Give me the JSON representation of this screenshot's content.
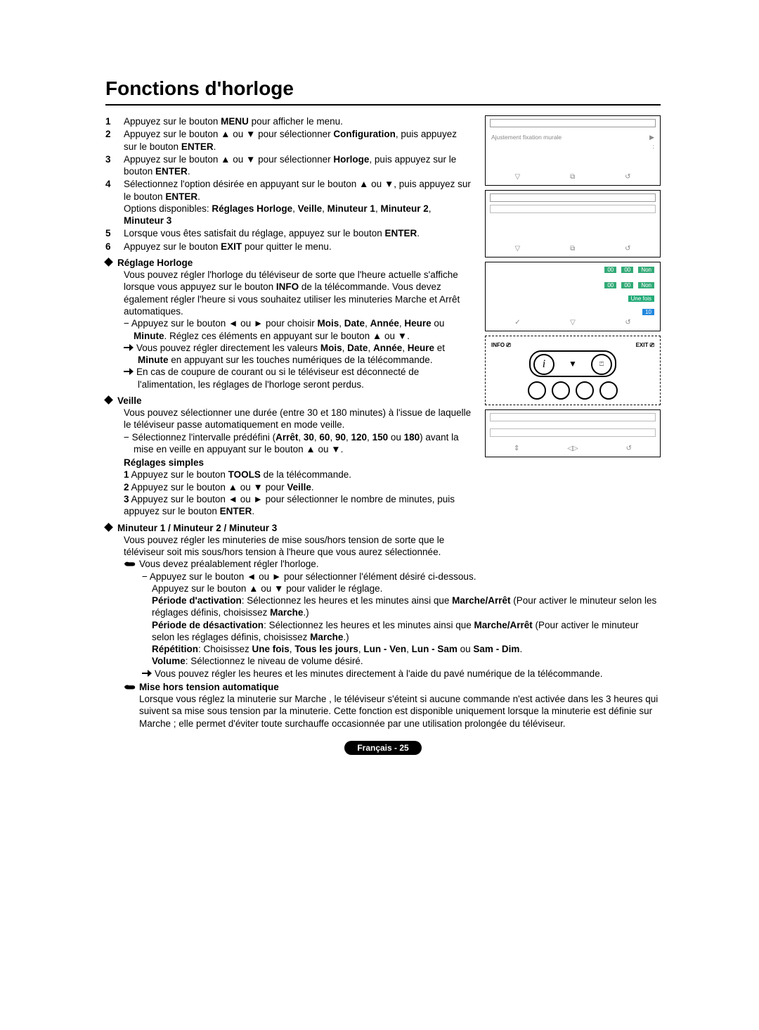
{
  "title": "Fonctions d'horloge",
  "steps": [
    "Appuyez sur le bouton <b>MENU</b> pour afficher le menu.",
    "Appuyez sur le bouton ▲ ou ▼ pour sélectionner <b>Configuration</b>, puis appuyez sur le bouton <b>ENTER</b>.",
    "Appuyez sur le bouton ▲ ou ▼ pour sélectionner <b>Horloge</b>, puis appuyez sur le bouton <b>ENTER</b>.",
    "Sélectionnez l'option désirée en appuyant sur le bouton ▲ ou ▼, puis appuyez sur le bouton <b>ENTER</b>.<br>Options disponibles: <b>Réglages Horloge</b>, <b>Veille</b>, <b>Minuteur 1</b>, <b>Minuteur 2</b>, <b>Minuteur 3</b>",
    "Lorsque vous êtes satisfait du réglage, appuyez sur le bouton <b>ENTER</b>.",
    "Appuyez sur le bouton <b>EXIT</b> pour quitter le menu."
  ],
  "sec_reglage_title": "Réglage Horloge",
  "sec_reglage_body": "Vous pouvez régler l'horloge du téléviseur de sorte que l'heure actuelle s'affiche lorsque vous appuyez sur le bouton <b>INFO</b> de la télécommande. Vous devez également régler l'heure si vous souhaitez utiliser les minuteries Marche et Arrêt automatiques.",
  "sec_reglage_dash": "Appuyez sur le bouton ◄ ou ► pour choisir <b>Mois</b>, <b>Date</b>, <b>Année</b>, <b>Heure</b> ou <b>Minute</b>. Réglez ces éléments en appuyant sur le bouton ▲ ou ▼.",
  "sec_reglage_arrow1": "Vous pouvez régler directement les valeurs <b>Mois</b>, <b>Date</b>, <b>Année</b>, <b>Heure</b> et <b>Minute</b> en appuyant sur les touches numériques de la télécommande.",
  "sec_reglage_arrow2": "En cas de coupure de courant ou si le téléviseur est déconnecté de l'alimentation, les réglages de l'horloge seront perdus.",
  "sec_veille_title": "Veille",
  "sec_veille_body": "Vous pouvez sélectionner une durée (entre 30 et 180 minutes) à l'issue de laquelle le téléviseur passe automatiquement en mode veille.",
  "sec_veille_dash": "Sélectionnez l'intervalle prédéfini (<b>Arrêt</b>, <b>30</b>, <b>60</b>, <b>90</b>, <b>120</b>, <b>150</b> ou <b>180</b>) avant la mise en veille en appuyant sur le bouton ▲ ou ▼.",
  "sec_simples_title": "Réglages simples",
  "sec_simples_1": "Appuyez sur le bouton <b>TOOLS</b> de la télécommande.",
  "sec_simples_2": "Appuyez sur le bouton ▲ ou ▼ pour <b>Veille</b>.",
  "sec_simples_3": "Appuyez sur le bouton ◄ ou ► pour sélectionner le nombre de minutes, puis appuyez sur le bouton <b>ENTER</b>.",
  "sec_minuteur_title": "Minuteur 1 / Minuteur 2 / Minuteur 3",
  "sec_minuteur_body": "Vous pouvez régler les minuteries de mise sous/hors tension de sorte que le téléviseur soit mis sous/hors tension à l'heure que vous aurez sélectionnée.",
  "sec_minuteur_hand": "Vous devez préalablement régler l'horloge.",
  "sec_minuteur_dash": "Appuyez sur le bouton ◄ ou ► pour sélectionner l'élément désiré ci-dessous.<br>Appuyez sur le bouton ▲ ou ▼ pour valider le réglage.",
  "minuteur_items": [
    "<b>Période d'activation</b>: Sélectionnez les heures et les minutes ainsi que <b>Marche/Arrêt</b> (Pour activer le minuteur selon les réglages définis, choisissez <b>Marche</b>.)",
    "<b>Période de désactivation</b>: Sélectionnez les heures et les minutes ainsi que <b>Marche/Arrêt</b> (Pour activer le minuteur selon les réglages définis, choisissez <b>Marche</b>.)",
    "<b>Répétition</b>: Choisissez <b>Une fois</b>, <b>Tous les jours</b>, <b>Lun - Ven</b>, <b>Lun - Sam</b> ou <b>Sam - Dim</b>.",
    "<b>Volume</b>: Sélectionnez le niveau de volume désiré."
  ],
  "minuteur_arrow": "Vous pouvez régler les heures et les minutes directement à l'aide du pavé numérique de la télécommande.",
  "auto_off_title": "Mise hors tension automatique",
  "auto_off_body": "Lorsque vous réglez la minuterie sur Marche , le téléviseur s'éteint si aucune commande n'est activée dans les 3 heures qui suivent sa mise sous tension par la minuterie. Cette fonction est disponible uniquement lorsque la minuterie est définie sur Marche ; elle permet d'éviter toute surchauffe occasionnée par une utilisation prolongée du téléviseur.",
  "footer": "Français - 25",
  "shot1_row": "Ajustement fixation murale",
  "shot3_vals": {
    "on": "00",
    "off": "00",
    "non": "Non",
    "rep": "Une fois",
    "vol": "10"
  },
  "remote": {
    "info": "INFO",
    "exit": "EXIT"
  }
}
